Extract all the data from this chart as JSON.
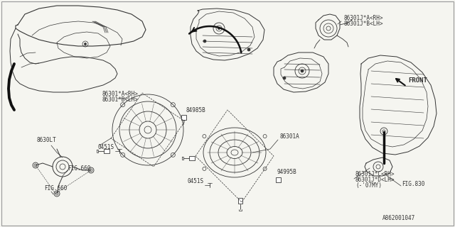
{
  "bg_color": "#f5f5f0",
  "line_color": "#333333",
  "text_color": "#333333",
  "fig_number": "A862001047",
  "labels": {
    "top_right_speaker": [
      "86301J*A<RH>",
      "86301J*B<LH>"
    ],
    "mid_left_speaker": [
      "86301*A<RH>",
      "86301*B<LH>"
    ],
    "screw1": "84985B",
    "mid_speaker": "86301A",
    "screw2": "94995B",
    "bolt1": "0451S",
    "bolt2": "0451S",
    "tweeter": "8630LT",
    "fig660a": "FIG.660",
    "fig660b": "FIG.660",
    "fig830": "FIG.830",
    "front_label": "FRONT",
    "bottom_right": [
      "86301J*C<RH>",
      "86301J*D<LH>",
      "(-'07MY)"
    ]
  }
}
